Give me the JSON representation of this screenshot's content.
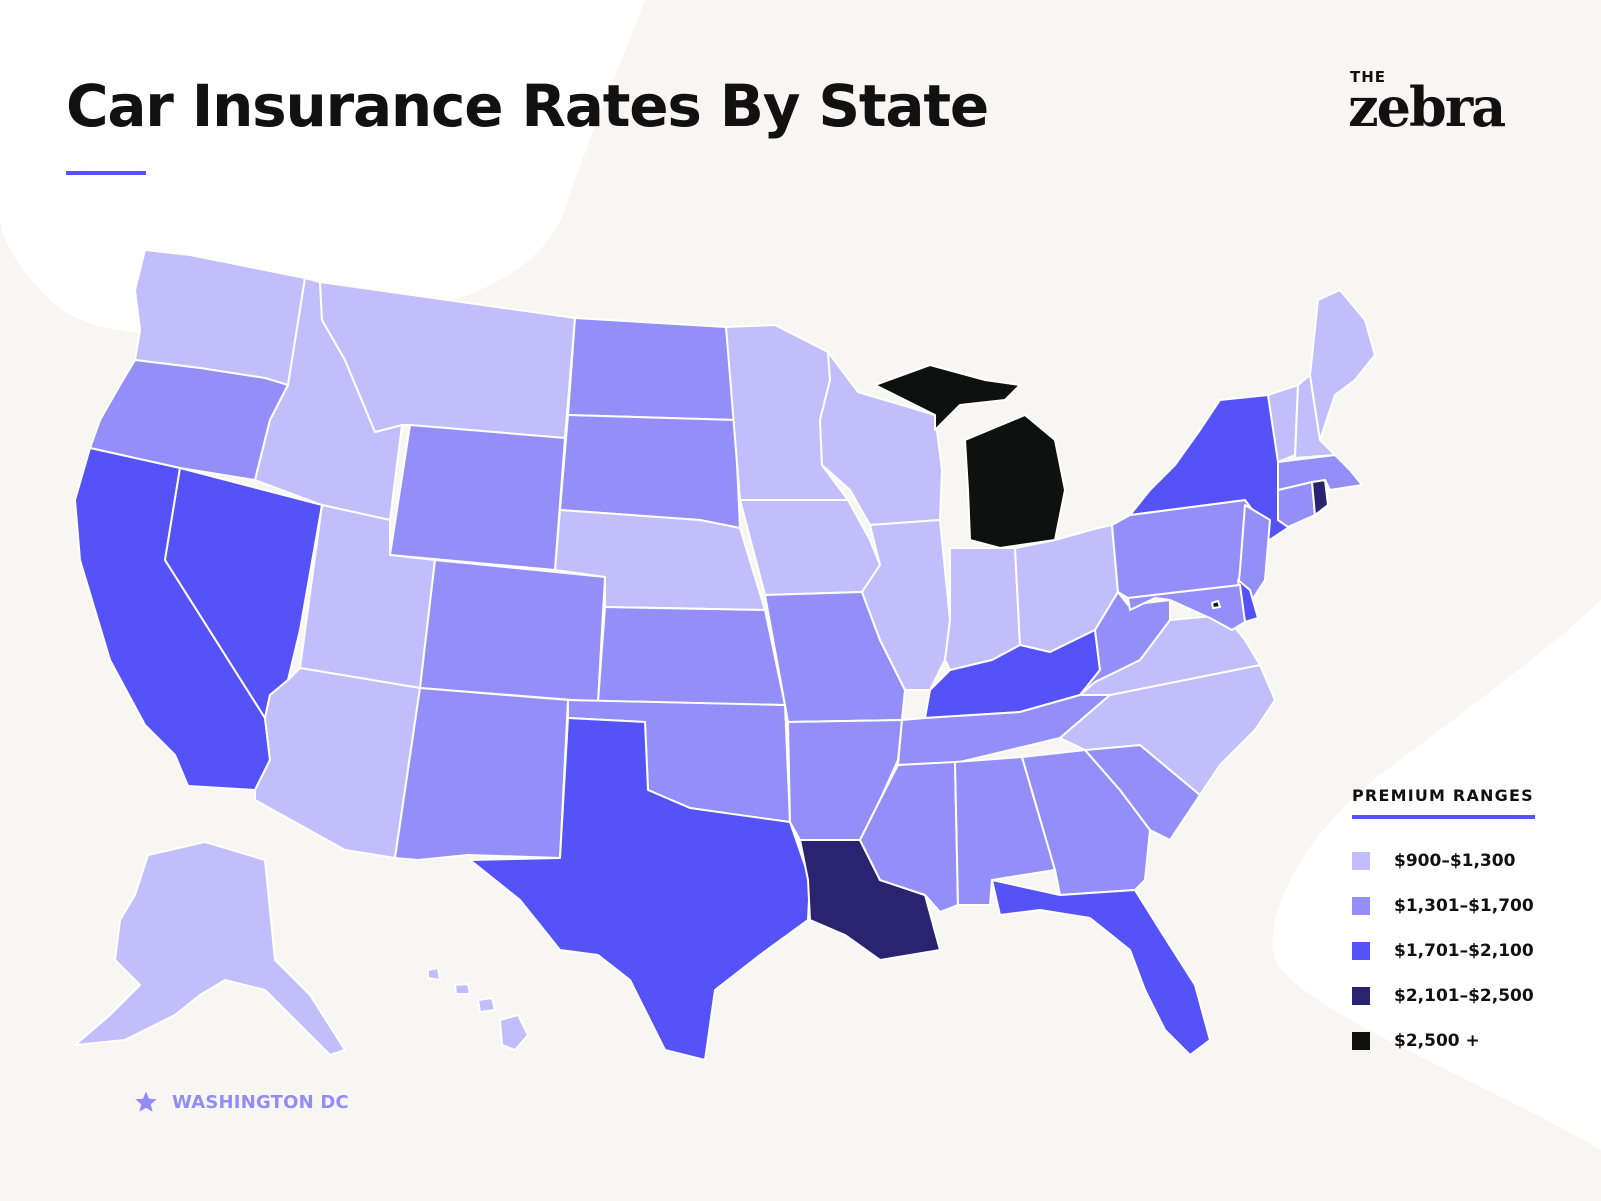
{
  "title": "Car Insurance Rates By State",
  "logo": {
    "prefix": "THE",
    "wordmark": "zebra"
  },
  "legend": {
    "title": "PREMIUM RANGES",
    "items": [
      {
        "label": "$900–$1,300",
        "color": "#c2befc"
      },
      {
        "label": "$1,301–$1,700",
        "color": "#938ef8"
      },
      {
        "label": "$1,701–$2,100",
        "color": "#5552f7"
      },
      {
        "label": "$2,101–$2,500",
        "color": "#2a2470"
      },
      {
        "label": "$2,500 +",
        "color": "#0e1110"
      }
    ]
  },
  "dc_marker": {
    "label": "WASHINGTON DC",
    "icon": "star-icon",
    "color": "#918cf6"
  },
  "accent_color": "#5552f7",
  "states": [
    {
      "id": "WA",
      "tier": 1
    },
    {
      "id": "OR",
      "tier": 2
    },
    {
      "id": "CA",
      "tier": 3
    },
    {
      "id": "NV",
      "tier": 3
    },
    {
      "id": "ID",
      "tier": 1
    },
    {
      "id": "MT",
      "tier": 1
    },
    {
      "id": "WY",
      "tier": 2
    },
    {
      "id": "UT",
      "tier": 1
    },
    {
      "id": "AZ",
      "tier": 1
    },
    {
      "id": "CO",
      "tier": 2
    },
    {
      "id": "NM",
      "tier": 2
    },
    {
      "id": "ND",
      "tier": 2
    },
    {
      "id": "SD",
      "tier": 2
    },
    {
      "id": "NE",
      "tier": 1
    },
    {
      "id": "KS",
      "tier": 2
    },
    {
      "id": "OK",
      "tier": 2
    },
    {
      "id": "TX",
      "tier": 3
    },
    {
      "id": "MN",
      "tier": 1
    },
    {
      "id": "IA",
      "tier": 1
    },
    {
      "id": "MO",
      "tier": 2
    },
    {
      "id": "AR",
      "tier": 2
    },
    {
      "id": "LA",
      "tier": 4
    },
    {
      "id": "WI",
      "tier": 1
    },
    {
      "id": "IL",
      "tier": 1
    },
    {
      "id": "MI",
      "tier": 5
    },
    {
      "id": "IN",
      "tier": 1
    },
    {
      "id": "OH",
      "tier": 1
    },
    {
      "id": "KY",
      "tier": 3
    },
    {
      "id": "TN",
      "tier": 2
    },
    {
      "id": "MS",
      "tier": 2
    },
    {
      "id": "AL",
      "tier": 2
    },
    {
      "id": "GA",
      "tier": 2
    },
    {
      "id": "FL",
      "tier": 3
    },
    {
      "id": "SC",
      "tier": 2
    },
    {
      "id": "NC",
      "tier": 1
    },
    {
      "id": "VA",
      "tier": 1
    },
    {
      "id": "WV",
      "tier": 2
    },
    {
      "id": "PA",
      "tier": 2
    },
    {
      "id": "NY",
      "tier": 3
    },
    {
      "id": "NJ",
      "tier": 2
    },
    {
      "id": "DE",
      "tier": 3
    },
    {
      "id": "MD",
      "tier": 2
    },
    {
      "id": "CT",
      "tier": 2
    },
    {
      "id": "RI",
      "tier": 4
    },
    {
      "id": "MA",
      "tier": 2
    },
    {
      "id": "VT",
      "tier": 1
    },
    {
      "id": "NH",
      "tier": 1
    },
    {
      "id": "ME",
      "tier": 1
    },
    {
      "id": "AK",
      "tier": 1
    },
    {
      "id": "HI",
      "tier": 1
    },
    {
      "id": "DC",
      "tier": 5
    }
  ]
}
